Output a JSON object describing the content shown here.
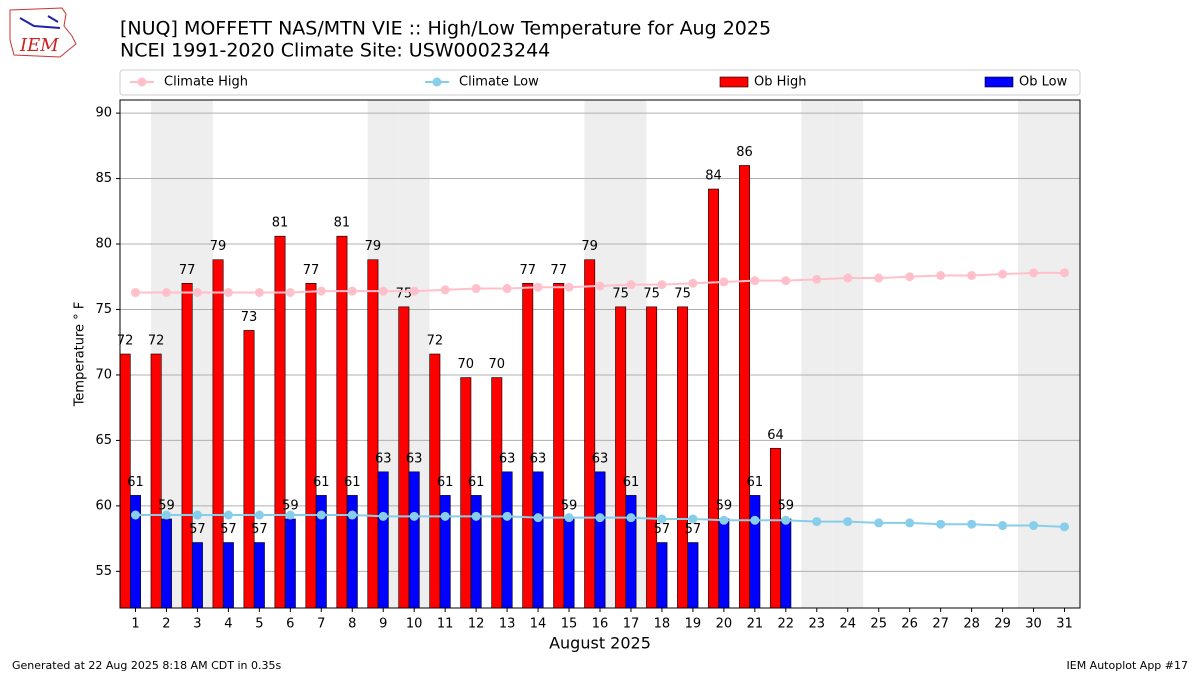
{
  "chart_data": {
    "type": "bar",
    "title": "[NUQ] MOFFETT NAS/MTN VIE :: High/Low Temperature for Aug 2025",
    "subtitle": "NCEI 1991-2020 Climate Site: USW00023244",
    "logo_text": "IEM",
    "y_label": "Temperature $^\\circ$F",
    "y_label_text": "Temperature ° F",
    "x_label": "August 2025",
    "footer_left": "Generated at 22 Aug 2025 8:18 AM CDT in 0.35s",
    "footer_right": "IEM Autoplot App #17",
    "x": [
      1,
      2,
      3,
      4,
      5,
      6,
      7,
      8,
      9,
      10,
      11,
      12,
      13,
      14,
      15,
      16,
      17,
      18,
      19,
      20,
      21,
      22,
      23,
      24,
      25,
      26,
      27,
      28,
      29,
      30,
      31
    ],
    "xlim": [
      0.5,
      31.5
    ],
    "xticks": [
      1,
      2,
      3,
      4,
      5,
      6,
      7,
      8,
      9,
      10,
      11,
      12,
      13,
      14,
      15,
      16,
      17,
      18,
      19,
      20,
      21,
      22,
      23,
      24,
      25,
      26,
      27,
      28,
      29,
      30,
      31
    ],
    "ylim": [
      52.2,
      91
    ],
    "yticks": [
      55,
      60,
      65,
      70,
      75,
      80,
      85,
      90
    ],
    "grid": true,
    "shaded_days": [
      2,
      3,
      9,
      10,
      16,
      17,
      23,
      24,
      30,
      31
    ],
    "series": [
      {
        "name": "Climate High",
        "kind": "line",
        "color": "#ffc0cb",
        "values": [
          76.3,
          76.3,
          76.3,
          76.3,
          76.3,
          76.3,
          76.4,
          76.4,
          76.4,
          76.4,
          76.5,
          76.6,
          76.6,
          76.7,
          76.7,
          76.8,
          76.9,
          76.9,
          77.0,
          77.1,
          77.2,
          77.2,
          77.3,
          77.4,
          77.4,
          77.5,
          77.6,
          77.6,
          77.7,
          77.8,
          77.8
        ]
      },
      {
        "name": "Climate Low",
        "kind": "line",
        "color": "#87ceeb",
        "values": [
          59.3,
          59.3,
          59.3,
          59.3,
          59.3,
          59.3,
          59.3,
          59.3,
          59.2,
          59.2,
          59.2,
          59.2,
          59.2,
          59.1,
          59.1,
          59.1,
          59.1,
          59.0,
          59.0,
          58.9,
          58.9,
          58.9,
          58.8,
          58.8,
          58.7,
          58.7,
          58.6,
          58.6,
          58.5,
          58.5,
          58.4
        ]
      },
      {
        "name": "Ob High",
        "kind": "bar",
        "color": "#ff0000",
        "values": [
          71.6,
          71.6,
          77.0,
          78.8,
          73.4,
          80.6,
          77.0,
          80.6,
          78.8,
          75.2,
          71.6,
          69.8,
          69.8,
          77.0,
          77.0,
          78.8,
          75.2,
          75.2,
          75.2,
          84.2,
          86.0,
          64.4,
          null,
          null,
          null,
          null,
          null,
          null,
          null,
          null,
          null
        ],
        "value_labels": [
          "72",
          "72",
          "77",
          "79",
          "73",
          "81",
          "77",
          "81",
          "79",
          "75",
          "72",
          "70",
          "70",
          "77",
          "77",
          "79",
          "75",
          "75",
          "75",
          "84",
          "86",
          "64",
          null,
          null,
          null,
          null,
          null,
          null,
          null,
          null,
          null
        ]
      },
      {
        "name": "Ob Low",
        "kind": "bar",
        "color": "#0000ff",
        "values": [
          60.8,
          59.0,
          57.2,
          57.2,
          57.2,
          59.0,
          60.8,
          60.8,
          62.6,
          62.6,
          60.8,
          60.8,
          62.6,
          62.6,
          59.0,
          62.6,
          60.8,
          57.2,
          57.2,
          59.0,
          60.8,
          59.0,
          null,
          null,
          null,
          null,
          null,
          null,
          null,
          null,
          null
        ],
        "value_labels": [
          "61",
          "59",
          "57",
          "57",
          "57",
          "59",
          "61",
          "61",
          "63",
          "63",
          "61",
          "61",
          "63",
          "63",
          "59",
          "63",
          "61",
          "57",
          "57",
          "59",
          "61",
          "59",
          null,
          null,
          null,
          null,
          null,
          null,
          null,
          null,
          null
        ]
      }
    ]
  }
}
